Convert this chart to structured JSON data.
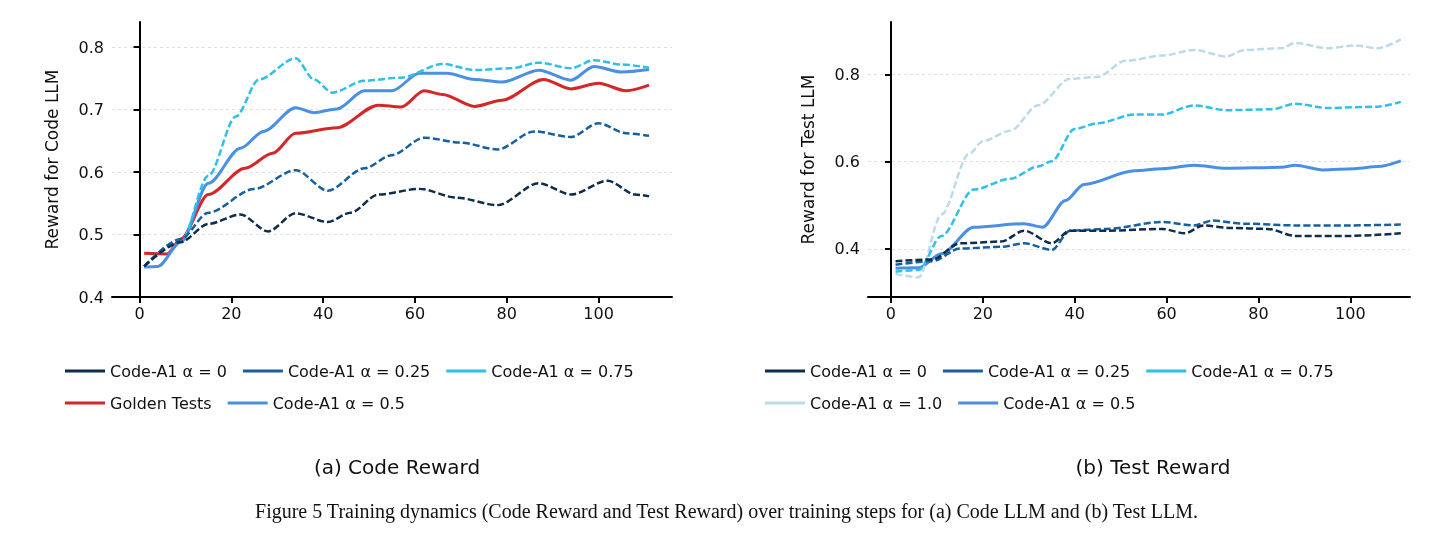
{
  "chart_data": [
    {
      "type": "line",
      "title": "(a) Code Reward",
      "ylabel": "Reward for Code LLM",
      "xlim": [
        -6,
        116
      ],
      "xticks": [
        0,
        20,
        40,
        60,
        80,
        100
      ],
      "ylim": [
        0.4,
        0.84
      ],
      "yticks": [
        0.4,
        0.5,
        0.6,
        0.7,
        0.8
      ],
      "grid": "y",
      "legend": "bottom",
      "marker": "none",
      "annotations": [
        "Figure 5 Training dynamics (Code Reward and Test Reward) over training steps for (a) Code LLM and (b) Test LLM."
      ],
      "series": [
        {
          "name": "Code-A1 α = 0",
          "color": "#0d2c4e",
          "line_style": "dashed",
          "x": [
            1,
            9,
            15,
            22,
            28,
            34,
            41,
            46,
            52,
            61,
            69,
            78,
            87,
            94,
            102,
            108,
            111
          ],
          "values": [
            0.449,
            0.488,
            0.517,
            0.532,
            0.505,
            0.534,
            0.52,
            0.535,
            0.564,
            0.573,
            0.559,
            0.547,
            0.582,
            0.564,
            0.586,
            0.564,
            0.561
          ]
        },
        {
          "name": "Code-A1 α = 0.25",
          "color": "#1660a0",
          "line_style": "dashed",
          "x": [
            1,
            9,
            15,
            25,
            34,
            41,
            49,
            55,
            62,
            70,
            78,
            86,
            94,
            100,
            106,
            111
          ],
          "values": [
            0.449,
            0.493,
            0.535,
            0.573,
            0.603,
            0.57,
            0.606,
            0.627,
            0.655,
            0.647,
            0.636,
            0.665,
            0.656,
            0.678,
            0.662,
            0.658
          ]
        },
        {
          "name": "Code-A1 α = 0.75",
          "color": "#2ec0e8",
          "line_style": "dashed",
          "x": [
            1,
            9,
            15,
            21,
            26,
            34,
            38,
            42,
            49,
            57,
            66,
            73,
            81,
            87,
            94,
            99,
            105,
            111
          ],
          "values": [
            0.449,
            0.488,
            0.594,
            0.689,
            0.748,
            0.782,
            0.748,
            0.727,
            0.746,
            0.751,
            0.773,
            0.763,
            0.766,
            0.775,
            0.766,
            0.779,
            0.772,
            0.767
          ]
        },
        {
          "name": "Golden Tests",
          "color": "#d62728",
          "line_style": "solid",
          "x": [
            1,
            6,
            9,
            15,
            23,
            29,
            34,
            43,
            52,
            57,
            62,
            66,
            73,
            79,
            88,
            94,
            100,
            106,
            111
          ],
          "values": [
            0.47,
            0.469,
            0.493,
            0.564,
            0.606,
            0.63,
            0.662,
            0.671,
            0.707,
            0.704,
            0.73,
            0.724,
            0.705,
            0.715,
            0.748,
            0.733,
            0.742,
            0.73,
            0.739
          ]
        },
        {
          "name": "Code-A1 α = 0.5",
          "color": "#4a90e2",
          "line_style": "solid",
          "x": [
            1,
            4,
            9,
            15,
            22,
            27,
            34,
            38,
            43,
            49,
            55,
            61,
            67,
            73,
            79,
            87,
            94,
            99,
            105,
            111
          ],
          "values": [
            0.448,
            0.449,
            0.488,
            0.582,
            0.638,
            0.665,
            0.703,
            0.695,
            0.701,
            0.73,
            0.73,
            0.758,
            0.758,
            0.748,
            0.744,
            0.763,
            0.747,
            0.769,
            0.76,
            0.764
          ]
        }
      ]
    },
    {
      "type": "line",
      "title": "(b) Test Reward",
      "ylabel": "Reward for Test LLM",
      "xlim": [
        -5,
        113
      ],
      "xticks": [
        0,
        20,
        40,
        60,
        80,
        100
      ],
      "ylim": [
        0.29,
        0.92
      ],
      "yticks": [
        0.4,
        0.6,
        0.8
      ],
      "grid": "y",
      "legend": "bottom",
      "marker": "none",
      "series": [
        {
          "name": "Code-A1 α = 0",
          "color": "#0d2c4e",
          "line_style": "dashed",
          "x": [
            1,
            9,
            15,
            24,
            29,
            35,
            39,
            47,
            59,
            64,
            68,
            74,
            82,
            88,
            100,
            111
          ],
          "values": [
            0.372,
            0.376,
            0.413,
            0.417,
            0.442,
            0.413,
            0.442,
            0.442,
            0.446,
            0.436,
            0.454,
            0.448,
            0.446,
            0.43,
            0.43,
            0.436
          ]
        },
        {
          "name": "Code-A1 α = 0.25",
          "color": "#1660a0",
          "line_style": "dashed",
          "x": [
            1,
            9,
            15,
            24,
            29,
            35,
            39,
            47,
            59,
            66,
            70,
            77,
            88,
            100,
            111
          ],
          "values": [
            0.364,
            0.372,
            0.401,
            0.405,
            0.413,
            0.398,
            0.442,
            0.446,
            0.462,
            0.454,
            0.465,
            0.458,
            0.454,
            0.454,
            0.456
          ]
        },
        {
          "name": "Code-A1 α = 0.75",
          "color": "#2ec0e8",
          "line_style": "dashed",
          "x": [
            1,
            6,
            11,
            18,
            26,
            32,
            35,
            40,
            45,
            53,
            59,
            66,
            73,
            83,
            88,
            95,
            106,
            111
          ],
          "values": [
            0.348,
            0.352,
            0.43,
            0.536,
            0.561,
            0.589,
            0.601,
            0.675,
            0.688,
            0.708,
            0.708,
            0.729,
            0.718,
            0.72,
            0.733,
            0.723,
            0.726,
            0.737
          ]
        },
        {
          "name": "Code-A1 α = 1.0",
          "color": "#bcdbe8",
          "line_style": "dashed",
          "x": [
            1,
            6,
            11,
            17,
            20,
            26,
            32,
            39,
            45,
            51,
            59,
            66,
            73,
            77,
            85,
            88,
            95,
            101,
            106,
            111
          ],
          "values": [
            0.343,
            0.335,
            0.479,
            0.618,
            0.647,
            0.671,
            0.729,
            0.79,
            0.794,
            0.831,
            0.843,
            0.856,
            0.841,
            0.856,
            0.86,
            0.872,
            0.86,
            0.866,
            0.86,
            0.88
          ]
        },
        {
          "name": "Code-A1 α = 0.5",
          "color": "#4a90e2",
          "line_style": "solid",
          "x": [
            1,
            6,
            11,
            18,
            29,
            33,
            38,
            42,
            53,
            59,
            66,
            73,
            85,
            88,
            94,
            101,
            106,
            111
          ],
          "values": [
            0.356,
            0.357,
            0.389,
            0.45,
            0.458,
            0.45,
            0.511,
            0.548,
            0.579,
            0.584,
            0.592,
            0.585,
            0.587,
            0.592,
            0.581,
            0.584,
            0.589,
            0.602
          ]
        }
      ]
    }
  ]
}
